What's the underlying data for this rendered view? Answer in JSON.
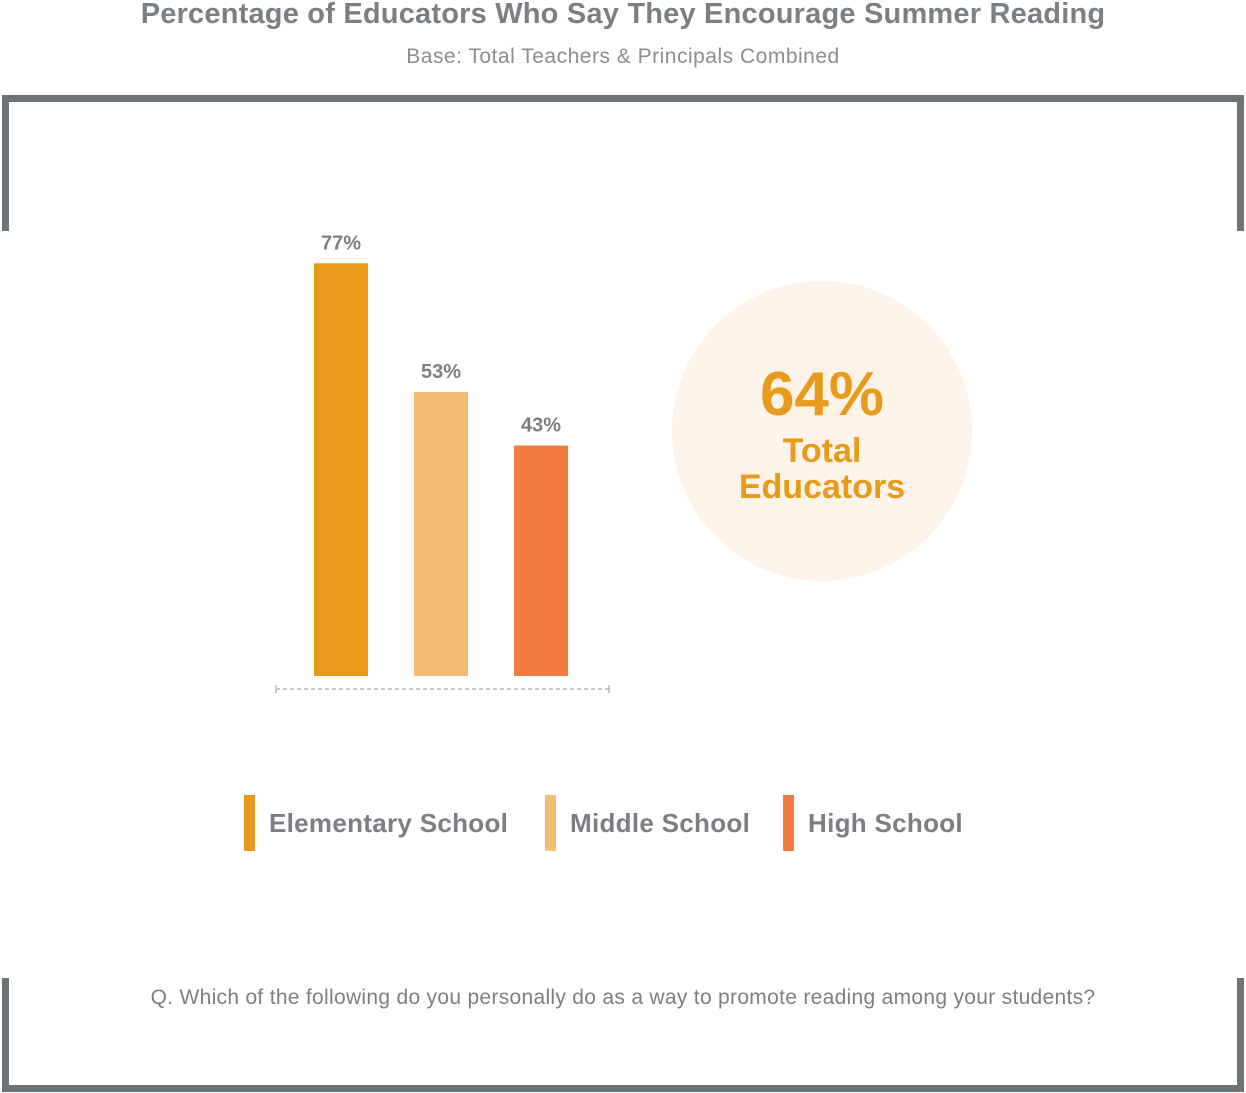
{
  "header": {
    "title": "Percentage of Educators Who Say They Encourage Summer Reading",
    "subtitle": "Base: Total Teachers & Principals Combined"
  },
  "chart_data": {
    "type": "bar",
    "categories": [
      "Elementary School",
      "Middle School",
      "High School"
    ],
    "values": [
      77,
      53,
      43
    ],
    "value_labels": [
      "77%",
      "53%",
      "43%"
    ],
    "unit": "%",
    "ylim": [
      0,
      100
    ],
    "grid": false,
    "legend_position": "bottom",
    "colors": [
      "#e89b1a",
      "#f2be74",
      "#f47b3f"
    ],
    "title": "Percentage of Educators Who Say They Encourage Summer Reading",
    "subtitle": "Base: Total Teachers & Principals Combined"
  },
  "callout": {
    "value": "64%",
    "label": "Total Educators",
    "color": "#e89b1a",
    "background": "#fdf3e8"
  },
  "legend": {
    "items": [
      {
        "label": "Elementary School",
        "color": "#e89b1a"
      },
      {
        "label": "Middle School",
        "color": "#f2be74"
      },
      {
        "label": "High School",
        "color": "#f47b3f"
      }
    ]
  },
  "footer": {
    "question": "Q. Which of the following do you personally do as a way to promote reading among your students?"
  }
}
